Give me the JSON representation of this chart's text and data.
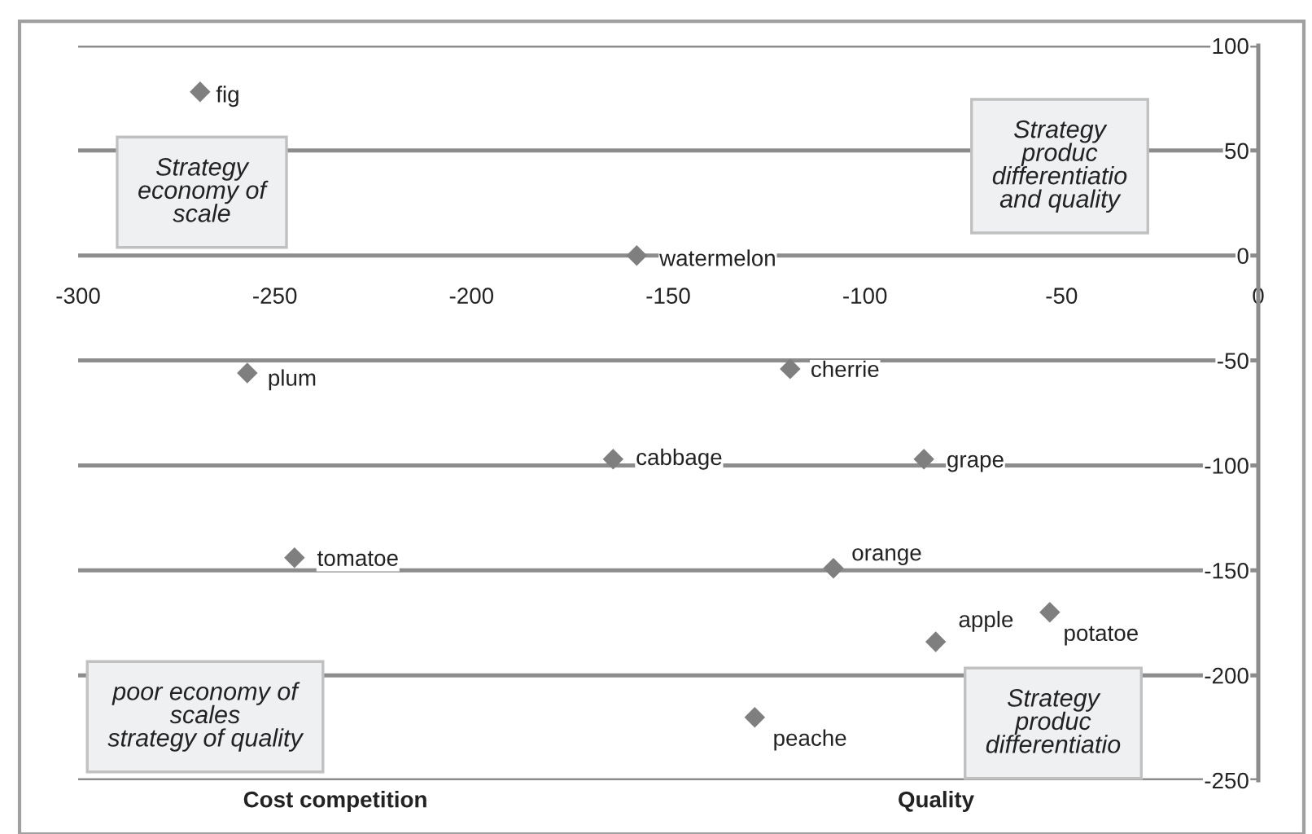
{
  "chart_data": {
    "type": "scatter",
    "series": [
      {
        "color": "#7f7f7f",
        "x": [
          -269,
          -158,
          -257,
          -119,
          -164,
          -85,
          -245,
          -108,
          -82,
          -53,
          -128
        ],
        "values": [
          78,
          0,
          -56,
          -54,
          -97,
          -97,
          -144,
          -149,
          -184,
          -170,
          -220
        ]
      }
    ],
    "marker": "diamond",
    "grid": "y",
    "xlim": [
      -300,
      0
    ],
    "xticks": [
      -300,
      -250,
      -200,
      -150,
      -100,
      -50,
      0
    ],
    "ylim": [
      -250,
      100
    ],
    "yticks": [
      100,
      50,
      0,
      -50,
      -100,
      -150,
      -200,
      -250
    ],
    "annotations": [
      {
        "text": "fig",
        "x": -269,
        "y": 78
      },
      {
        "text": "watermelon",
        "x": -158,
        "y": 0
      },
      {
        "text": "plum",
        "x": -257,
        "y": -56
      },
      {
        "text": "cherrie",
        "x": -119,
        "y": -54
      },
      {
        "text": "cabbage",
        "x": -164,
        "y": -97
      },
      {
        "text": "grape",
        "x": -85,
        "y": -97
      },
      {
        "text": "tomatoe",
        "x": -245,
        "y": -144
      },
      {
        "text": "orange",
        "x": -108,
        "y": -149
      },
      {
        "text": "apple",
        "x": -82,
        "y": -184
      },
      {
        "text": "potatoe",
        "x": -53,
        "y": -170
      },
      {
        "text": "peache",
        "x": -128,
        "y": -220
      },
      "Strategy\neconomy of\nscale",
      "Strategy\nproduc\ndifferentiatio\nand quality",
      "poor economy of\nscales\nstrategy of quality",
      "Strategy\nproduc\ndifferentiatio",
      "Cost competition",
      "Quality"
    ]
  }
}
